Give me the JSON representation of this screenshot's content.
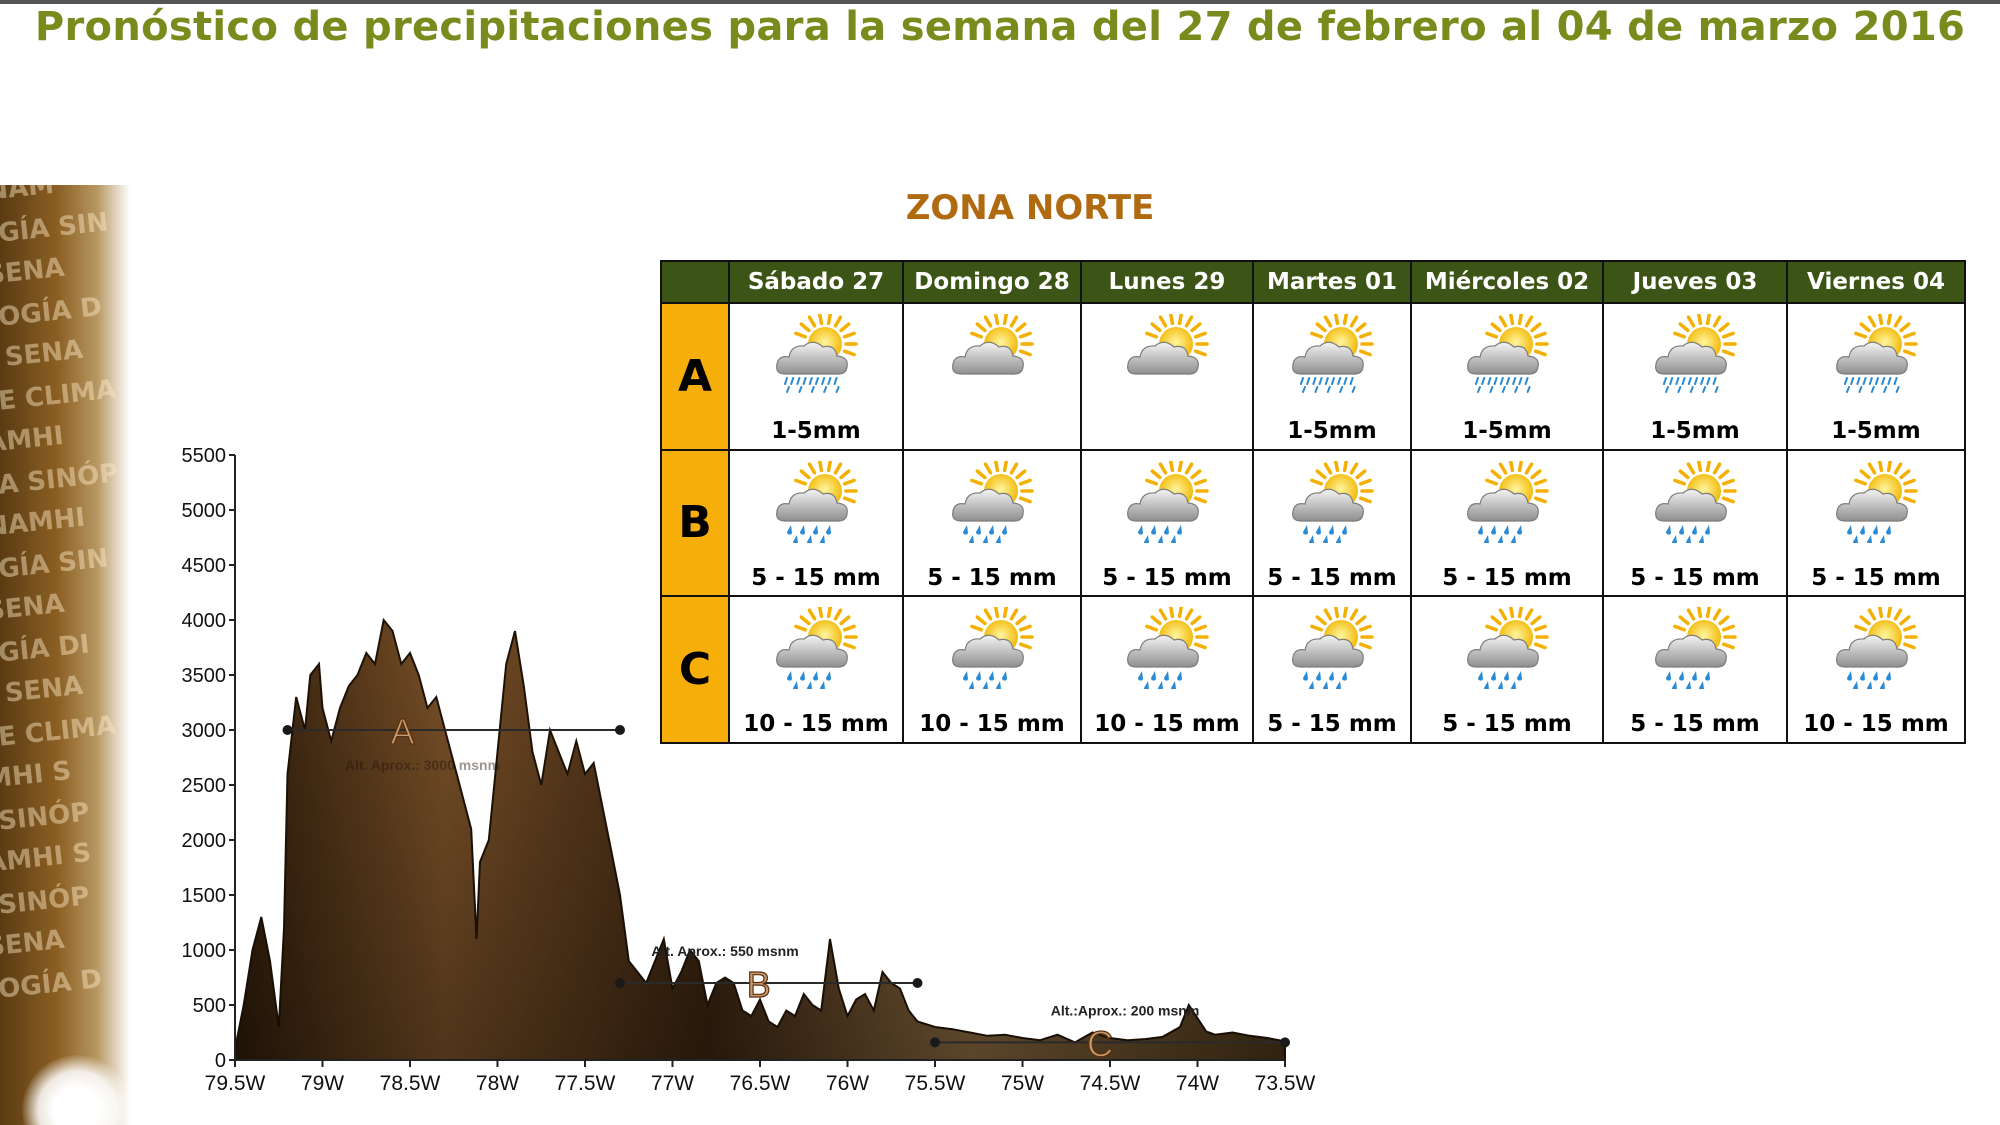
{
  "title": "Pronóstico de precipitaciones para la semana del 27 de febrero al 04 de marzo 2016",
  "zone_title": "ZONA NORTE",
  "watermark_lines": [
    "NAM",
    "GÍA SIN",
    "SENA",
    "OGÍA D",
    "I SENA",
    "E CLIMA",
    "AMHI",
    "A SINÓP",
    "NAMHI",
    "GÍA SIN",
    "SENA",
    "GÍA DI",
    "I SENA",
    "E CLIMA",
    "MHI S",
    "SINÓP",
    "AMHI S",
    "SINÓP",
    "SENA",
    "OGÍA D"
  ],
  "colors": {
    "title": "#7a8a1c",
    "zone_title": "#b06a10",
    "header_bg": "#3d5417",
    "zone_label_bg": "#f6ae0b",
    "terrain": "#5a3a1c"
  },
  "days": [
    "Sábado 27",
    "Domingo 28",
    "Lunes 29",
    "Martes 01",
    "Miércoles 02",
    "Jueves 03",
    "Viernes 04"
  ],
  "rows": [
    {
      "zone": "A",
      "cells": [
        {
          "icon": "sun-cloud-drizzle-icon",
          "amount": "1-5mm"
        },
        {
          "icon": "sun-cloud-icon",
          "amount": ""
        },
        {
          "icon": "sun-cloud-icon",
          "amount": ""
        },
        {
          "icon": "sun-cloud-drizzle-icon",
          "amount": "1-5mm"
        },
        {
          "icon": "sun-cloud-drizzle-icon",
          "amount": "1-5mm"
        },
        {
          "icon": "sun-cloud-drizzle-icon",
          "amount": "1-5mm"
        },
        {
          "icon": "sun-cloud-drizzle-icon",
          "amount": "1-5mm"
        }
      ]
    },
    {
      "zone": "B",
      "cells": [
        {
          "icon": "sun-cloud-rain-icon",
          "amount": "5 - 15 mm"
        },
        {
          "icon": "sun-cloud-rain-icon",
          "amount": "5 - 15 mm"
        },
        {
          "icon": "sun-cloud-rain-icon",
          "amount": "5 - 15 mm"
        },
        {
          "icon": "sun-cloud-rain-icon",
          "amount": "5 - 15 mm"
        },
        {
          "icon": "sun-cloud-rain-icon",
          "amount": "5 - 15 mm"
        },
        {
          "icon": "sun-cloud-rain-icon",
          "amount": "5 - 15 mm"
        },
        {
          "icon": "sun-cloud-rain-icon",
          "amount": "5 - 15 mm"
        }
      ]
    },
    {
      "zone": "C",
      "cells": [
        {
          "icon": "sun-cloud-rain-icon",
          "amount": "10 - 15 mm"
        },
        {
          "icon": "sun-cloud-rain-icon",
          "amount": "10 - 15 mm"
        },
        {
          "icon": "sun-cloud-rain-icon",
          "amount": "10 - 15 mm"
        },
        {
          "icon": "sun-cloud-rain-icon",
          "amount": "5 - 15 mm"
        },
        {
          "icon": "sun-cloud-rain-icon",
          "amount": "5 - 15 mm"
        },
        {
          "icon": "sun-cloud-rain-icon",
          "amount": "5 - 15 mm"
        },
        {
          "icon": "sun-cloud-rain-icon",
          "amount": "10 - 15 mm"
        }
      ]
    }
  ],
  "chart_data": {
    "type": "area",
    "title": "",
    "xlabel": "",
    "ylabel": "",
    "xlim": [
      -79.5,
      -73.5
    ],
    "ylim": [
      0,
      5500
    ],
    "x_ticks": [
      -79.5,
      -79,
      -78.5,
      -78,
      -77.5,
      -77,
      -76.5,
      -76,
      -75.5,
      -75,
      -74.5,
      -74,
      -73.5
    ],
    "x_tick_labels": [
      "79.5W",
      "79W",
      "78.5W",
      "78W",
      "77.5W",
      "77W",
      "76.5W",
      "76W",
      "75.5W",
      "75W",
      "74.5W",
      "74W",
      "73.5W"
    ],
    "y_ticks": [
      0,
      500,
      1000,
      1500,
      2000,
      2500,
      3000,
      3500,
      4000,
      4500,
      5000,
      5500
    ],
    "y_tick_labels": [
      "0",
      "500",
      "1000",
      "1500",
      "2000",
      "2500",
      "3000",
      "3500",
      "4000",
      "4500",
      "5000",
      "5500"
    ],
    "grid": false,
    "series": [
      {
        "x": [
          -79.5,
          -79.45,
          -79.4,
          -79.35,
          -79.3,
          -79.25,
          -79.22,
          -79.2,
          -79.15,
          -79.1,
          -79.07,
          -79.02,
          -79.0,
          -78.95,
          -78.9,
          -78.85,
          -78.8,
          -78.75,
          -78.7,
          -78.65,
          -78.6,
          -78.55,
          -78.5,
          -78.45,
          -78.4,
          -78.35,
          -78.3,
          -78.25,
          -78.2,
          -78.15,
          -78.12,
          -78.1,
          -78.05,
          -78.0,
          -77.95,
          -77.9,
          -77.85,
          -77.8,
          -77.75,
          -77.7,
          -77.65,
          -77.6,
          -77.55,
          -77.5,
          -77.45,
          -77.4,
          -77.35,
          -77.3,
          -77.25,
          -77.2,
          -77.15,
          -77.1,
          -77.05,
          -77.0,
          -76.95,
          -76.9,
          -76.85,
          -76.8,
          -76.75,
          -76.7,
          -76.65,
          -76.6,
          -76.55,
          -76.5,
          -76.45,
          -76.4,
          -76.35,
          -76.3,
          -76.25,
          -76.2,
          -76.15,
          -76.1,
          -76.05,
          -76.0,
          -75.95,
          -75.9,
          -75.85,
          -75.8,
          -75.75,
          -75.7,
          -75.65,
          -75.6,
          -75.5,
          -75.4,
          -75.3,
          -75.2,
          -75.1,
          -75.0,
          -74.9,
          -74.8,
          -74.7,
          -74.6,
          -74.5,
          -74.4,
          -74.3,
          -74.2,
          -74.1,
          -74.05,
          -74.0,
          -73.95,
          -73.9,
          -73.85,
          -73.8,
          -73.7,
          -73.6,
          -73.5
        ],
        "y": [
          100,
          500,
          1000,
          1300,
          900,
          300,
          1200,
          2600,
          3300,
          3000,
          3500,
          3600,
          3200,
          2900,
          3200,
          3400,
          3500,
          3700,
          3600,
          4000,
          3900,
          3600,
          3700,
          3500,
          3200,
          3300,
          3000,
          2700,
          2400,
          2100,
          1100,
          1800,
          2000,
          2800,
          3600,
          3900,
          3400,
          2800,
          2500,
          3000,
          2800,
          2600,
          2900,
          2600,
          2700,
          2300,
          1900,
          1500,
          900,
          800,
          700,
          900,
          1100,
          650,
          800,
          1000,
          900,
          500,
          700,
          750,
          700,
          450,
          400,
          550,
          350,
          300,
          450,
          400,
          600,
          500,
          450,
          1100,
          650,
          400,
          550,
          600,
          450,
          800,
          700,
          650,
          450,
          350,
          300,
          280,
          250,
          220,
          230,
          200,
          180,
          230,
          160,
          250,
          200,
          180,
          190,
          210,
          300,
          500,
          380,
          260,
          230,
          240,
          250,
          220,
          200,
          170
        ]
      }
    ],
    "annotations": [
      {
        "label": "A",
        "note": "Alt. Aprox.: 3000 msnm",
        "x_from": -79.2,
        "x_to": -77.3,
        "y": 3000
      },
      {
        "label": "B",
        "note": "Alt. Aprox.: 550 msnm",
        "x_from": -77.3,
        "x_to": -75.6,
        "y": 700
      },
      {
        "label": "C",
        "note": "Alt.:Aprox.: 200 msnm",
        "x_from": -75.5,
        "x_to": -73.5,
        "y": 160
      }
    ]
  }
}
